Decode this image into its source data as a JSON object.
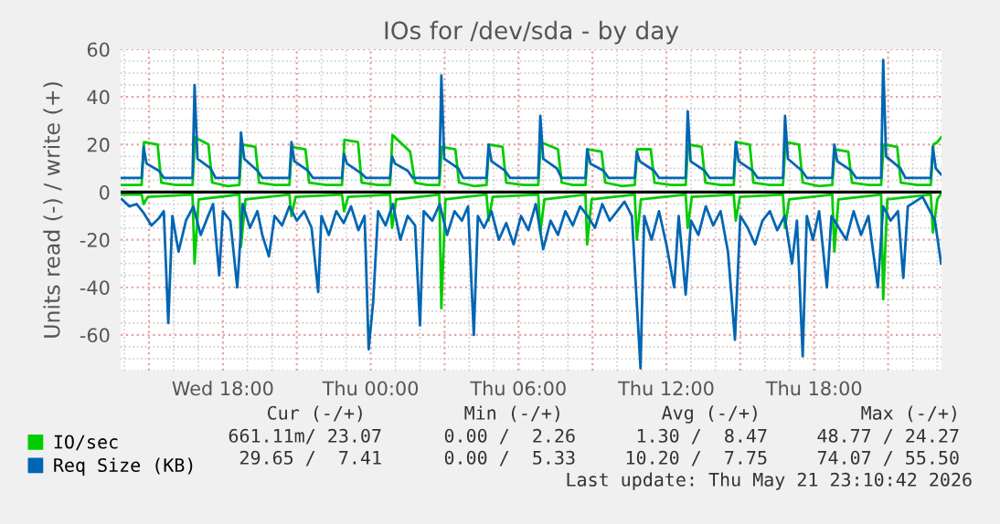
{
  "chart_data": {
    "type": "line",
    "title": "IOs for /dev/sda - by day",
    "ylabel": "Units read (-) / write (+)",
    "xlim": [
      "2026-05-20T13:51",
      "2026-05-21T23:10"
    ],
    "ylim": [
      -75,
      60
    ],
    "xticks": [
      {
        "value": "2026-05-20T15:00",
        "label": null
      },
      {
        "value": "2026-05-20T18:00",
        "label": "Wed 18:00"
      },
      {
        "value": "2026-05-20T21:00",
        "label": null
      },
      {
        "value": "2026-05-21T00:00",
        "label": "Thu 00:00"
      },
      {
        "value": "2026-05-21T03:00",
        "label": null
      },
      {
        "value": "2026-05-21T06:00",
        "label": "Thu 06:00"
      },
      {
        "value": "2026-05-21T09:00",
        "label": null
      },
      {
        "value": "2026-05-21T12:00",
        "label": "Thu 12:00"
      },
      {
        "value": "2026-05-21T15:00",
        "label": null
      },
      {
        "value": "2026-05-21T18:00",
        "label": "Thu 18:00"
      },
      {
        "value": "2026-05-21T21:00",
        "label": null
      }
    ],
    "yticks": [
      -60,
      -40,
      -20,
      0,
      20,
      40,
      60
    ],
    "grid": true,
    "legend": "bottom left",
    "marker": "none",
    "line_style": "solid",
    "ref_lines": [
      {
        "axis": "y",
        "value": 0,
        "color": "#000000"
      }
    ],
    "series": [
      {
        "name": "IO/sec",
        "color": "#00cc00",
        "x": [
          "2026-05-20T13:54",
          "2026-05-20T14:42",
          "2026-05-20T14:48",
          "2026-05-20T15:21",
          "2026-05-20T15:30",
          "2026-05-20T16:06",
          "2026-05-20T16:46",
          "2026-05-20T16:52",
          "2026-05-20T17:25",
          "2026-05-20T17:34",
          "2026-05-20T18:12",
          "2026-05-20T18:40",
          "2026-05-20T18:46",
          "2026-05-20T19:19",
          "2026-05-20T19:28",
          "2026-05-20T20:06",
          "2026-05-20T20:42",
          "2026-05-20T20:48",
          "2026-05-20T21:21",
          "2026-05-20T21:30",
          "2026-05-20T22:12",
          "2026-05-20T22:50",
          "2026-05-20T22:56",
          "2026-05-20T23:29",
          "2026-05-20T23:38",
          "2026-05-21T00:18",
          "2026-05-21T00:47",
          "2026-05-21T00:53",
          "2026-05-21T01:36",
          "2026-05-21T01:48",
          "2026-05-21T02:18",
          "2026-05-21T02:47",
          "2026-05-21T02:53",
          "2026-05-21T03:26",
          "2026-05-21T03:35",
          "2026-05-21T04:12",
          "2026-05-21T04:42",
          "2026-05-21T04:48",
          "2026-05-21T05:21",
          "2026-05-21T05:30",
          "2026-05-21T06:12",
          "2026-05-21T06:48",
          "2026-05-21T06:54",
          "2026-05-21T07:36",
          "2026-05-21T07:45",
          "2026-05-21T08:12",
          "2026-05-21T08:43",
          "2026-05-21T08:49",
          "2026-05-21T09:22",
          "2026-05-21T09:31",
          "2026-05-21T10:12",
          "2026-05-21T10:43",
          "2026-05-21T10:49",
          "2026-05-21T11:22",
          "2026-05-21T11:31",
          "2026-05-21T12:12",
          "2026-05-21T12:47",
          "2026-05-21T12:53",
          "2026-05-21T13:26",
          "2026-05-21T13:35",
          "2026-05-21T14:12",
          "2026-05-21T14:44",
          "2026-05-21T14:50",
          "2026-05-21T15:23",
          "2026-05-21T15:32",
          "2026-05-21T16:12",
          "2026-05-21T16:44",
          "2026-05-21T16:50",
          "2026-05-21T17:23",
          "2026-05-21T17:32",
          "2026-05-21T18:12",
          "2026-05-21T18:44",
          "2026-05-21T18:50",
          "2026-05-21T19:23",
          "2026-05-21T19:32",
          "2026-05-21T20:12",
          "2026-05-21T20:43",
          "2026-05-21T20:49",
          "2026-05-21T21:22",
          "2026-05-21T21:31",
          "2026-05-21T22:12",
          "2026-05-21T22:44",
          "2026-05-21T22:50",
          "2026-05-21T23:00",
          "2026-05-21T23:09"
        ],
        "values": [
          3,
          3,
          21,
          20,
          4,
          3,
          3,
          23,
          20,
          4,
          2.5,
          3,
          20,
          19,
          4,
          3,
          3,
          19,
          18,
          4,
          3,
          3,
          22,
          21,
          4,
          3,
          3,
          24,
          17,
          4,
          3,
          3,
          19,
          18,
          4,
          2.5,
          3,
          20,
          19,
          4,
          3,
          3,
          21,
          18,
          4,
          3,
          3,
          18,
          17,
          4,
          2.5,
          3,
          18,
          18,
          4,
          3,
          3,
          20,
          19,
          4,
          3,
          3,
          21,
          20,
          4,
          3,
          3,
          21,
          20,
          4,
          2.5,
          3,
          18,
          17,
          4,
          3,
          3,
          20,
          19,
          4,
          3,
          3,
          20,
          21,
          23
        ]
      },
      {
        "name": "Req Size (KB)",
        "color": "#0066b3",
        "x": [
          "2026-05-20T13:54",
          "2026-05-20T14:42",
          "2026-05-20T14:47",
          "2026-05-20T14:54",
          "2026-05-20T15:24",
          "2026-05-20T15:36",
          "2026-05-20T16:46",
          "2026-05-20T16:51",
          "2026-05-20T16:58",
          "2026-05-20T17:30",
          "2026-05-20T17:42",
          "2026-05-20T18:40",
          "2026-05-20T18:44",
          "2026-05-20T18:52",
          "2026-05-20T19:24",
          "2026-05-20T19:36",
          "2026-05-20T20:42",
          "2026-05-20T20:47",
          "2026-05-20T20:54",
          "2026-05-20T21:27",
          "2026-05-20T21:39",
          "2026-05-20T22:50",
          "2026-05-20T22:55",
          "2026-05-20T23:02",
          "2026-05-20T23:36",
          "2026-05-20T23:48",
          "2026-05-21T00:47",
          "2026-05-21T00:52",
          "2026-05-21T00:59",
          "2026-05-21T01:30",
          "2026-05-21T01:42",
          "2026-05-21T02:47",
          "2026-05-21T02:52",
          "2026-05-21T02:59",
          "2026-05-21T03:33",
          "2026-05-21T03:45",
          "2026-05-21T04:42",
          "2026-05-21T04:47",
          "2026-05-21T04:54",
          "2026-05-21T05:27",
          "2026-05-21T05:39",
          "2026-05-21T06:48",
          "2026-05-21T06:53",
          "2026-05-21T07:00",
          "2026-05-21T07:33",
          "2026-05-21T07:45",
          "2026-05-21T08:43",
          "2026-05-21T08:47",
          "2026-05-21T08:55",
          "2026-05-21T09:27",
          "2026-05-21T09:39",
          "2026-05-21T10:43",
          "2026-05-21T10:48",
          "2026-05-21T10:55",
          "2026-05-21T11:30",
          "2026-05-21T11:42",
          "2026-05-21T12:47",
          "2026-05-21T12:52",
          "2026-05-21T12:59",
          "2026-05-21T13:33",
          "2026-05-21T13:45",
          "2026-05-21T14:44",
          "2026-05-21T14:49",
          "2026-05-21T14:56",
          "2026-05-21T15:30",
          "2026-05-21T15:42",
          "2026-05-21T16:44",
          "2026-05-21T16:49",
          "2026-05-21T16:56",
          "2026-05-21T17:30",
          "2026-05-21T17:42",
          "2026-05-21T18:44",
          "2026-05-21T18:49",
          "2026-05-21T18:56",
          "2026-05-21T19:30",
          "2026-05-21T19:42",
          "2026-05-21T20:43",
          "2026-05-21T20:48",
          "2026-05-21T20:55",
          "2026-05-21T21:30",
          "2026-05-21T21:42",
          "2026-05-21T22:44",
          "2026-05-21T22:49",
          "2026-05-21T22:56",
          "2026-05-21T23:09"
        ],
        "values": [
          6,
          6,
          19,
          12,
          9,
          6,
          6,
          45,
          14,
          10,
          6,
          6,
          25,
          14,
          9,
          6,
          6,
          21,
          13,
          9,
          6,
          6,
          16,
          12,
          8,
          6,
          6,
          15,
          12,
          9,
          6,
          6,
          49,
          14,
          10,
          6,
          6,
          20,
          13,
          9,
          6,
          6,
          32,
          14,
          10,
          6,
          6,
          18,
          12,
          9,
          6,
          6,
          17,
          13,
          9,
          6,
          6,
          34,
          13,
          9,
          6,
          6,
          21,
          13,
          9,
          6,
          6,
          32,
          14,
          9,
          6,
          6,
          20,
          13,
          9,
          6,
          6,
          55.5,
          15,
          10,
          6,
          6,
          19,
          10,
          7.4
        ]
      },
      {
        "color": "#00cc00",
        "x": [
          "2026-05-20T13:54",
          "2026-05-20T14:42",
          "2026-05-20T14:47",
          "2026-05-20T14:57",
          "2026-05-20T16:46",
          "2026-05-20T16:51",
          "2026-05-20T17:01",
          "2026-05-20T18:40",
          "2026-05-20T18:44",
          "2026-05-20T18:55",
          "2026-05-20T20:42",
          "2026-05-20T20:47",
          "2026-05-20T20:57",
          "2026-05-20T22:50",
          "2026-05-20T22:55",
          "2026-05-20T23:05",
          "2026-05-21T00:47",
          "2026-05-21T00:52",
          "2026-05-21T01:02",
          "2026-05-21T02:47",
          "2026-05-21T02:52",
          "2026-05-21T03:02",
          "2026-05-21T04:42",
          "2026-05-21T04:47",
          "2026-05-21T04:57",
          "2026-05-21T06:48",
          "2026-05-21T06:53",
          "2026-05-21T07:03",
          "2026-05-21T08:43",
          "2026-05-21T08:47",
          "2026-05-21T08:58",
          "2026-05-21T10:43",
          "2026-05-21T10:48",
          "2026-05-21T10:58",
          "2026-05-21T12:47",
          "2026-05-21T12:52",
          "2026-05-21T13:02",
          "2026-05-21T14:44",
          "2026-05-21T14:49",
          "2026-05-21T14:59",
          "2026-05-21T16:44",
          "2026-05-21T16:49",
          "2026-05-21T16:59",
          "2026-05-21T18:44",
          "2026-05-21T18:49",
          "2026-05-21T18:59",
          "2026-05-21T20:43",
          "2026-05-21T20:48",
          "2026-05-21T20:58",
          "2026-05-21T22:44",
          "2026-05-21T22:49",
          "2026-05-21T23:00",
          "2026-05-21T23:09"
        ],
        "values": [
          -1,
          -1,
          -5,
          -2,
          -1,
          -30,
          -3,
          -1,
          -23,
          -3,
          -1,
          -10,
          -2,
          -1,
          -8,
          -2,
          -1,
          -15,
          -3,
          -1,
          -48.8,
          -3,
          -1,
          -12,
          -2,
          -1,
          -17,
          -3,
          -1,
          -22,
          -3,
          -1,
          -20,
          -3,
          -1,
          -15,
          -2,
          -1,
          -12,
          -2,
          -1,
          -15,
          -3,
          -1,
          -25,
          -3,
          -1,
          -45,
          -3,
          -1,
          -17,
          -3,
          -0.7
        ]
      },
      {
        "color": "#0066b3",
        "x": [
          "2026-05-20T13:54",
          "2026-05-20T14:12",
          "2026-05-20T14:30",
          "2026-05-20T14:48",
          "2026-05-20T15:06",
          "2026-05-20T15:24",
          "2026-05-20T15:36",
          "2026-05-20T15:47",
          "2026-05-20T15:57",
          "2026-05-20T16:12",
          "2026-05-20T16:30",
          "2026-05-20T16:48",
          "2026-05-20T17:06",
          "2026-05-20T17:24",
          "2026-05-20T17:36",
          "2026-05-20T17:51",
          "2026-05-20T18:00",
          "2026-05-20T18:18",
          "2026-05-20T18:35",
          "2026-05-20T18:48",
          "2026-05-20T19:06",
          "2026-05-20T19:24",
          "2026-05-20T19:36",
          "2026-05-20T19:52",
          "2026-05-20T20:06",
          "2026-05-20T20:24",
          "2026-05-20T20:42",
          "2026-05-20T21:00",
          "2026-05-20T21:18",
          "2026-05-20T21:36",
          "2026-05-20T21:52",
          "2026-05-20T22:00",
          "2026-05-20T22:18",
          "2026-05-20T22:36",
          "2026-05-20T22:54",
          "2026-05-20T23:12",
          "2026-05-20T23:30",
          "2026-05-20T23:45",
          "2026-05-20T23:55",
          "2026-05-21T00:06",
          "2026-05-21T00:18",
          "2026-05-21T00:36",
          "2026-05-21T00:54",
          "2026-05-21T01:12",
          "2026-05-21T01:30",
          "2026-05-21T01:48",
          "2026-05-21T02:00",
          "2026-05-21T02:09",
          "2026-05-21T02:30",
          "2026-05-21T02:48",
          "2026-05-21T03:06",
          "2026-05-21T03:24",
          "2026-05-21T03:42",
          "2026-05-21T03:57",
          "2026-05-21T04:11",
          "2026-05-21T04:21",
          "2026-05-21T04:36",
          "2026-05-21T04:54",
          "2026-05-21T05:12",
          "2026-05-21T05:30",
          "2026-05-21T05:48",
          "2026-05-21T06:06",
          "2026-05-21T06:24",
          "2026-05-21T06:42",
          "2026-05-21T07:00",
          "2026-05-21T07:18",
          "2026-05-21T07:36",
          "2026-05-21T07:54",
          "2026-05-21T08:12",
          "2026-05-21T08:30",
          "2026-05-21T08:48",
          "2026-05-21T09:06",
          "2026-05-21T09:24",
          "2026-05-21T09:42",
          "2026-05-21T10:00",
          "2026-05-21T10:18",
          "2026-05-21T10:36",
          "2026-05-21T10:57",
          "2026-05-21T11:06",
          "2026-05-21T11:24",
          "2026-05-21T11:42",
          "2026-05-21T12:00",
          "2026-05-21T12:19",
          "2026-05-21T12:30",
          "2026-05-21T12:47",
          "2026-05-21T13:00",
          "2026-05-21T13:18",
          "2026-05-21T13:36",
          "2026-05-21T13:54",
          "2026-05-21T14:12",
          "2026-05-21T14:30",
          "2026-05-21T14:47",
          "2026-05-21T15:00",
          "2026-05-21T15:18",
          "2026-05-21T15:36",
          "2026-05-21T15:54",
          "2026-05-21T16:12",
          "2026-05-21T16:30",
          "2026-05-21T16:48",
          "2026-05-21T17:06",
          "2026-05-21T17:18",
          "2026-05-21T17:32",
          "2026-05-21T17:42",
          "2026-05-21T17:57",
          "2026-05-21T18:12",
          "2026-05-21T18:31",
          "2026-05-21T18:42",
          "2026-05-21T19:00",
          "2026-05-21T19:18",
          "2026-05-21T19:36",
          "2026-05-21T19:54",
          "2026-05-21T20:12",
          "2026-05-21T20:35",
          "2026-05-21T20:48",
          "2026-05-21T21:06",
          "2026-05-21T21:24",
          "2026-05-21T21:37",
          "2026-05-21T21:48",
          "2026-05-21T22:06",
          "2026-05-21T22:24",
          "2026-05-21T22:42",
          "2026-05-21T22:54",
          "2026-05-21T23:09"
        ],
        "values": [
          -3,
          -6,
          -5,
          -9,
          -14,
          -11,
          -8,
          -55,
          -10,
          -25,
          -12,
          -6,
          -18,
          -10,
          -5,
          -35,
          -8,
          -12,
          -40,
          -5,
          -15,
          -8,
          -18,
          -27,
          -10,
          -14,
          -6,
          -12,
          -8,
          -15,
          -42,
          -10,
          -18,
          -8,
          -13,
          -6,
          -16,
          -10,
          -66,
          -46,
          -8,
          -14,
          -5,
          -20,
          -10,
          -14,
          -56,
          -8,
          -12,
          -5,
          -18,
          -8,
          -12,
          -6,
          -60,
          -10,
          -15,
          -8,
          -20,
          -13,
          -22,
          -10,
          -16,
          -5,
          -24,
          -12,
          -18,
          -8,
          -14,
          -6,
          -10,
          -15,
          -5,
          -12,
          -8,
          -4,
          -10,
          -74,
          -10,
          -20,
          -8,
          -22,
          -40,
          -10,
          -43,
          -12,
          -18,
          -6,
          -14,
          -8,
          -25,
          -62,
          -10,
          -15,
          -22,
          -12,
          -8,
          -16,
          -10,
          -30,
          -12,
          -69,
          -10,
          -20,
          -8,
          -40,
          -10,
          -15,
          -20,
          -8,
          -18,
          -10,
          -40,
          -6,
          -12,
          -8,
          -36,
          -6,
          -4,
          -2,
          -8,
          -12,
          -30
        ]
      }
    ],
    "annotations": [
      "Cur (-/+)",
      "Min (-/+)",
      "Avg (-/+)",
      "Max (-/+)",
      "661.11m/ 23.07",
      "0.00 /  2.26",
      "1.30 /  8.47",
      "48.77 / 24.27",
      "29.65 /  7.41",
      "0.00 /  5.33",
      "10.20 /  7.75",
      "74.07 / 55.50",
      "Last update: Thu May 21 23:10:42 2026"
    ]
  }
}
